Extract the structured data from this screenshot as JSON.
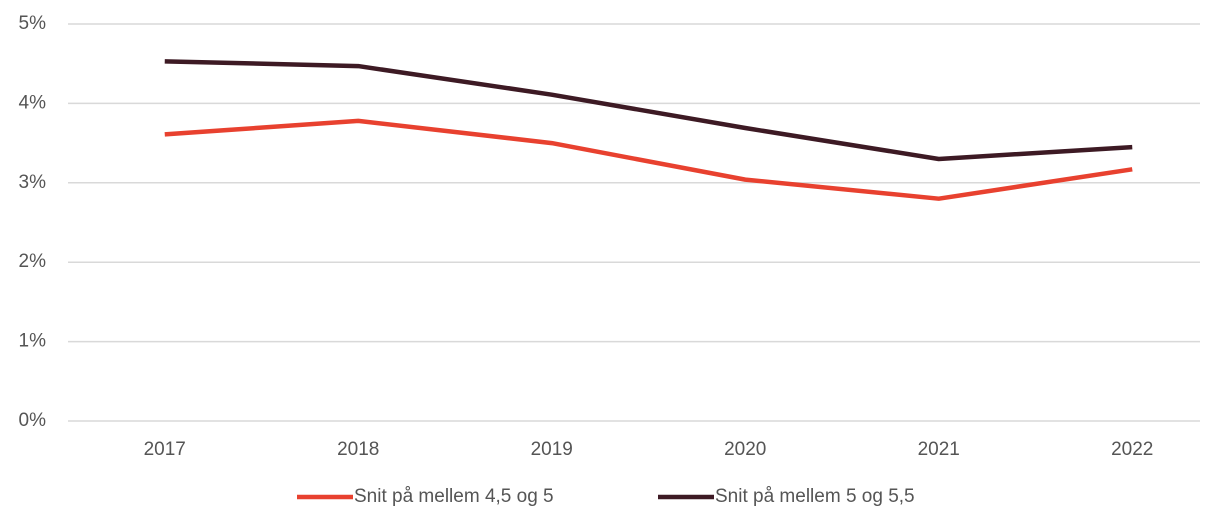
{
  "chart_data": {
    "type": "line",
    "categories": [
      "2017",
      "2018",
      "2019",
      "2020",
      "2021",
      "2022"
    ],
    "series": [
      {
        "name": "Snit på mellem 4,5 og 5",
        "color": "#e8412f",
        "values": [
          3.61,
          3.78,
          3.5,
          3.04,
          2.8,
          3.17
        ]
      },
      {
        "name": "Snit på mellem 5 og 5,5",
        "color": "#3d1a24",
        "values": [
          4.53,
          4.47,
          4.11,
          3.69,
          3.3,
          3.45
        ]
      }
    ],
    "ylim": [
      0,
      5
    ],
    "yticks": [
      {
        "value": 0,
        "label": "0%"
      },
      {
        "value": 1,
        "label": "1%"
      },
      {
        "value": 2,
        "label": "2%"
      },
      {
        "value": 3,
        "label": "3%"
      },
      {
        "value": 4,
        "label": "4%"
      },
      {
        "value": 5,
        "label": "5%"
      }
    ],
    "grid": true,
    "legend": "bottom"
  }
}
